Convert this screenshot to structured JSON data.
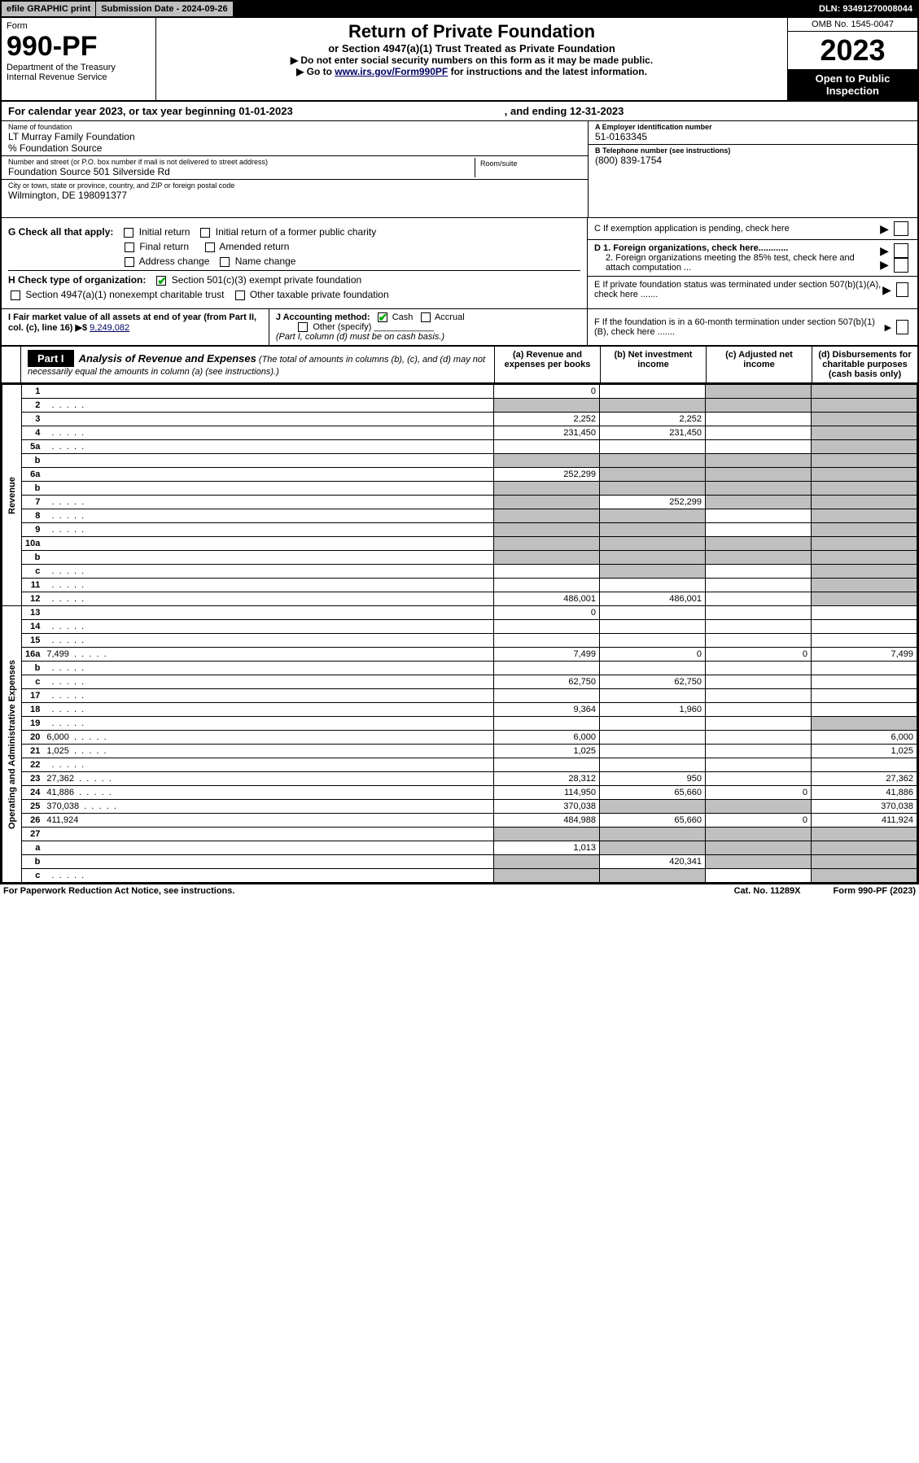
{
  "top": {
    "efile": "efile GRAPHIC print",
    "sub_label": "Submission Date - 2024-09-26",
    "dln": "DLN: 93491270008044"
  },
  "header": {
    "form": "Form",
    "form_num": "990-PF",
    "dept": "Department of the Treasury",
    "irs": "Internal Revenue Service",
    "title": "Return of Private Foundation",
    "subtitle": "or Section 4947(a)(1) Trust Treated as Private Foundation",
    "note1": "▶ Do not enter social security numbers on this form as it may be made public.",
    "note2_pre": "▶ Go to ",
    "note2_link": "www.irs.gov/Form990PF",
    "note2_post": " for instructions and the latest information.",
    "omb": "OMB No. 1545-0047",
    "year": "2023",
    "open": "Open to Public Inspection"
  },
  "cal": {
    "text1": "For calendar year 2023, or tax year beginning 01-01-2023",
    "text2": ", and ending 12-31-2023"
  },
  "id": {
    "name_label": "Name of foundation",
    "name": "LT Murray Family Foundation",
    "care": "% Foundation Source",
    "addr_label": "Number and street (or P.O. box number if mail is not delivered to street address)",
    "addr": "Foundation Source 501 Silverside Rd",
    "room_label": "Room/suite",
    "city_label": "City or town, state or province, country, and ZIP or foreign postal code",
    "city": "Wilmington, DE  198091377",
    "a_label": "A Employer identification number",
    "a_val": "51-0163345",
    "b_label": "B Telephone number (see instructions)",
    "b_val": "(800) 839-1754",
    "c_label": "C If exemption application is pending, check here",
    "d1": "D 1. Foreign organizations, check here............",
    "d2": "2. Foreign organizations meeting the 85% test, check here and attach computation ...",
    "e": "E  If private foundation status was terminated under section 507(b)(1)(A), check here .......",
    "f": "F  If the foundation is in a 60-month termination under section 507(b)(1)(B), check here .......",
    "g": "G Check all that apply:",
    "g_items": [
      "Initial return",
      "Initial return of a former public charity",
      "Final return",
      "Amended return",
      "Address change",
      "Name change"
    ],
    "h": "H Check type of organization:",
    "h1": "Section 501(c)(3) exempt private foundation",
    "h2": "Section 4947(a)(1) nonexempt charitable trust",
    "h3": "Other taxable private foundation",
    "i": "I Fair market value of all assets at end of year (from Part II, col. (c), line 16) ▶$ ",
    "i_val": "9,249,082",
    "j": "J Accounting method:",
    "j_cash": "Cash",
    "j_accr": "Accrual",
    "j_other": "Other (specify)",
    "j_note": "(Part I, column (d) must be on cash basis.)"
  },
  "part1": {
    "label": "Part I",
    "title": "Analysis of Revenue and Expenses",
    "note": " (The total of amounts in columns (b), (c), and (d) may not necessarily equal the amounts in column (a) (see instructions).)",
    "col_a": "(a)   Revenue and expenses per books",
    "col_b": "(b)   Net investment income",
    "col_c": "(c)   Adjusted net income",
    "col_d": "(d)   Disbursements for charitable purposes (cash basis only)"
  },
  "sides": {
    "rev": "Revenue",
    "exp": "Operating and Administrative Expenses"
  },
  "rows": [
    {
      "n": "1",
      "d": "",
      "a": "0",
      "b": "",
      "c": "",
      "cS": true,
      "dS": true
    },
    {
      "n": "2",
      "d": "",
      "a": "",
      "b": "",
      "c": "",
      "aS": true,
      "bS": true,
      "cS": true,
      "dS": true,
      "dots": true
    },
    {
      "n": "3",
      "d": "",
      "a": "2,252",
      "b": "2,252",
      "c": "",
      "dS": true
    },
    {
      "n": "4",
      "d": "",
      "a": "231,450",
      "b": "231,450",
      "c": "",
      "dS": true,
      "dots": true
    },
    {
      "n": "5a",
      "d": "",
      "a": "",
      "b": "",
      "c": "",
      "dS": true,
      "dots": true
    },
    {
      "n": "b",
      "d": "",
      "a": "",
      "b": "",
      "c": "",
      "aS": true,
      "bS": true,
      "cS": true,
      "dS": true
    },
    {
      "n": "6a",
      "d": "",
      "a": "252,299",
      "b": "",
      "c": "",
      "bS": true,
      "cS": true,
      "dS": true
    },
    {
      "n": "b",
      "d": "",
      "a": "",
      "b": "",
      "c": "",
      "aS": true,
      "bS": true,
      "cS": true,
      "dS": true
    },
    {
      "n": "7",
      "d": "",
      "a": "",
      "b": "252,299",
      "c": "",
      "aS": true,
      "cS": true,
      "dS": true,
      "dots": true
    },
    {
      "n": "8",
      "d": "",
      "a": "",
      "b": "",
      "c": "",
      "aS": true,
      "bS": true,
      "dS": true,
      "dots": true
    },
    {
      "n": "9",
      "d": "",
      "a": "",
      "b": "",
      "c": "",
      "aS": true,
      "bS": true,
      "dS": true,
      "dots": true
    },
    {
      "n": "10a",
      "d": "",
      "a": "",
      "b": "",
      "c": "",
      "aS": true,
      "bS": true,
      "cS": true,
      "dS": true
    },
    {
      "n": "b",
      "d": "",
      "a": "",
      "b": "",
      "c": "",
      "aS": true,
      "bS": true,
      "cS": true,
      "dS": true
    },
    {
      "n": "c",
      "d": "",
      "a": "",
      "b": "",
      "c": "",
      "bS": true,
      "dS": true,
      "dots": true
    },
    {
      "n": "11",
      "d": "",
      "a": "",
      "b": "",
      "c": "",
      "dS": true,
      "dots": true
    },
    {
      "n": "12",
      "d": "",
      "a": "486,001",
      "b": "486,001",
      "c": "",
      "dS": true,
      "dots": true
    },
    {
      "n": "13",
      "d": "",
      "a": "0",
      "b": "",
      "c": ""
    },
    {
      "n": "14",
      "d": "",
      "a": "",
      "b": "",
      "c": "",
      "dots": true
    },
    {
      "n": "15",
      "d": "",
      "a": "",
      "b": "",
      "c": "",
      "dots": true
    },
    {
      "n": "16a",
      "d": "7,499",
      "a": "7,499",
      "b": "0",
      "c": "0",
      "dots": true
    },
    {
      "n": "b",
      "d": "",
      "a": "",
      "b": "",
      "c": "",
      "dots": true
    },
    {
      "n": "c",
      "d": "",
      "a": "62,750",
      "b": "62,750",
      "c": "",
      "dots": true
    },
    {
      "n": "17",
      "d": "",
      "a": "",
      "b": "",
      "c": "",
      "dots": true
    },
    {
      "n": "18",
      "d": "",
      "a": "9,364",
      "b": "1,960",
      "c": "",
      "dots": true
    },
    {
      "n": "19",
      "d": "",
      "a": "",
      "b": "",
      "c": "",
      "dS": true,
      "dots": true
    },
    {
      "n": "20",
      "d": "6,000",
      "a": "6,000",
      "b": "",
      "c": "",
      "dots": true
    },
    {
      "n": "21",
      "d": "1,025",
      "a": "1,025",
      "b": "",
      "c": "",
      "dots": true
    },
    {
      "n": "22",
      "d": "",
      "a": "",
      "b": "",
      "c": "",
      "dots": true
    },
    {
      "n": "23",
      "d": "27,362",
      "a": "28,312",
      "b": "950",
      "c": "",
      "dots": true
    },
    {
      "n": "24",
      "d": "41,886",
      "a": "114,950",
      "b": "65,660",
      "c": "0",
      "dots": true
    },
    {
      "n": "25",
      "d": "370,038",
      "a": "370,038",
      "b": "",
      "c": "",
      "bS": true,
      "cS": true,
      "dots": true
    },
    {
      "n": "26",
      "d": "411,924",
      "a": "484,988",
      "b": "65,660",
      "c": "0"
    },
    {
      "n": "27",
      "d": "",
      "a": "",
      "b": "",
      "c": "",
      "aS": true,
      "bS": true,
      "cS": true,
      "dS": true
    },
    {
      "n": "a",
      "d": "",
      "a": "1,013",
      "b": "",
      "c": "",
      "bS": true,
      "cS": true,
      "dS": true
    },
    {
      "n": "b",
      "d": "",
      "a": "",
      "b": "420,341",
      "c": "",
      "aS": true,
      "cS": true,
      "dS": true
    },
    {
      "n": "c",
      "d": "",
      "a": "",
      "b": "",
      "c": "",
      "aS": true,
      "bS": true,
      "dS": true,
      "dots": true
    }
  ],
  "footer": {
    "left": "For Paperwork Reduction Act Notice, see instructions.",
    "mid": "Cat. No. 11289X",
    "right": "Form 990-PF (2023)"
  }
}
